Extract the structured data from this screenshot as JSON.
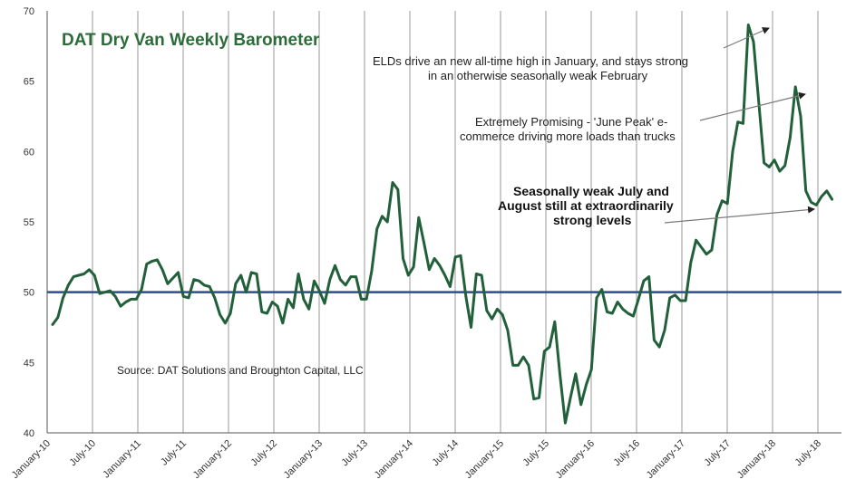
{
  "chart_data": {
    "type": "line",
    "title": "DAT Dry Van Weekly Barometer",
    "xlabel": "",
    "ylabel": "",
    "ylim": [
      40,
      70
    ],
    "yticks": [
      40,
      45,
      50,
      55,
      60,
      65,
      70
    ],
    "xticks": [
      "January-10",
      "July-10",
      "January-11",
      "July-11",
      "January-12",
      "July-12",
      "January-13",
      "July-13",
      "January-14",
      "July-14",
      "January-15",
      "July-15",
      "January-16",
      "July-16",
      "January-17",
      "July-17",
      "January-18",
      "July-18"
    ],
    "x_start": "January-10",
    "grid": "vertical",
    "reference_line": 50,
    "colors": {
      "series": "#22603a",
      "reference": "#2e4d8a",
      "title": "#2e6b3a",
      "grid": "#9a9a9a",
      "arrow": "#7a7a7a"
    },
    "series": [
      {
        "values": [
          47.7,
          48.2,
          49.6,
          50.5,
          51.1,
          51.2,
          51.3,
          51.6,
          51.2,
          49.9,
          50.0,
          50.1,
          49.7,
          49.0,
          49.3,
          49.5,
          49.5,
          50.2,
          52.0,
          52.2,
          52.3,
          51.6,
          50.6,
          51.0,
          51.4,
          49.7,
          49.6,
          50.9,
          50.8,
          50.5,
          50.4,
          49.6,
          48.4,
          47.8,
          48.5,
          50.6,
          51.2,
          50.0,
          51.4,
          51.3,
          48.6,
          48.5,
          49.3,
          49.0,
          47.8,
          49.5,
          48.9,
          51.3,
          49.5,
          48.8,
          50.8,
          50.1,
          49.2,
          50.9,
          51.9,
          50.9,
          50.5,
          51.1,
          51.1,
          49.5,
          49.5,
          51.5,
          54.5,
          55.4,
          55.0,
          57.8,
          57.3,
          52.4,
          51.2,
          51.8,
          55.3,
          53.5,
          51.6,
          52.4,
          51.9,
          51.2,
          50.4,
          52.5,
          52.6,
          49.7,
          47.5,
          51.3,
          51.2,
          48.7,
          48.1,
          48.8,
          48.4,
          47.3,
          44.8,
          44.8,
          45.4,
          44.8,
          42.4,
          42.5,
          45.8,
          46.1,
          47.9,
          44.1,
          40.7,
          42.5,
          44.2,
          42.0,
          43.4,
          44.5,
          49.6,
          50.2,
          48.6,
          48.5,
          49.3,
          48.8,
          48.5,
          48.3,
          49.5,
          50.8,
          51.1,
          46.6,
          46.1,
          47.3,
          49.6,
          49.8,
          49.4,
          49.4,
          52.1,
          53.7,
          53.2,
          52.7,
          53.0,
          55.5,
          56.5,
          56.3,
          60.0,
          62.1,
          62.0,
          69.0,
          67.8,
          63.5,
          59.2,
          58.9,
          59.4,
          58.6,
          59.0,
          61.0,
          64.6,
          62.5,
          57.2,
          56.4,
          56.2,
          56.8,
          57.2,
          56.6
        ]
      }
    ],
    "annotations": [
      "ELDs drive an new all-time high in January, and stays strong",
      "in an otherwise seasonally weak February",
      "Extremely Promising - 'June Peak' e-",
      "commerce driving more loads than trucks",
      "Seasonally weak July and",
      "August still at extraordinarily",
      "strong levels"
    ],
    "source": "Source: DAT Solutions and Broughton Capital, LLC"
  }
}
